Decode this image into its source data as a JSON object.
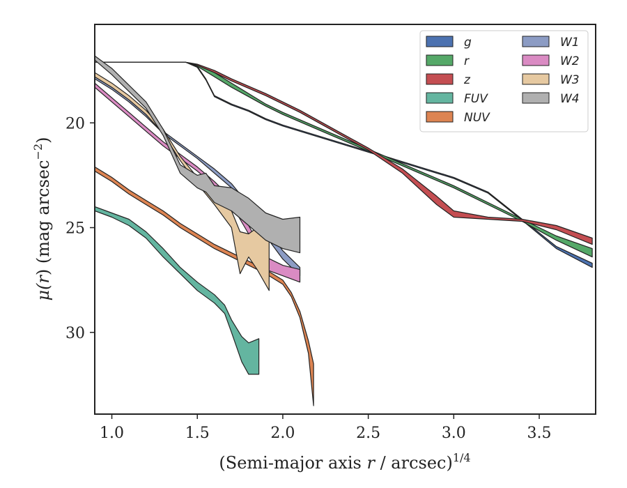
{
  "chart_data": {
    "type": "area",
    "title": "",
    "xlabel_parts": {
      "main": "(Semi-major axis ",
      "var": "r",
      "rest": " / arcsec)",
      "sup": "1/4"
    },
    "ylabel_parts": {
      "var": "μ(",
      "var2": "r",
      "rest": ") (mag arcsec",
      "sup": "−2",
      "close": ")"
    },
    "xlim": [
      0.9,
      3.83
    ],
    "ylim": [
      33.9,
      15.3
    ],
    "y_inverted": true,
    "xticks": [
      1.0,
      1.5,
      2.0,
      2.5,
      3.0,
      3.5
    ],
    "xtick_labels": [
      "1.0",
      "1.5",
      "2.0",
      "2.5",
      "3.0",
      "3.5"
    ],
    "yticks": [
      20,
      25,
      30
    ],
    "ytick_labels": [
      "20",
      "25",
      "30"
    ],
    "grid": false,
    "legend": {
      "position": "top-right",
      "columns": 2
    },
    "series": [
      {
        "name": "g",
        "color": "#4c72b0",
        "upper": [
          [
            0.9,
            17.1
          ],
          [
            1.43,
            17.1
          ],
          [
            1.5,
            17.3
          ],
          [
            1.55,
            17.9
          ],
          [
            1.6,
            18.7
          ],
          [
            1.7,
            19.1
          ],
          [
            1.8,
            19.4
          ],
          [
            1.9,
            19.8
          ],
          [
            2.0,
            20.1
          ],
          [
            2.2,
            20.6
          ],
          [
            2.4,
            21.1
          ],
          [
            2.6,
            21.6
          ],
          [
            2.8,
            22.1
          ],
          [
            3.0,
            22.6
          ],
          [
            3.2,
            23.3
          ],
          [
            3.4,
            24.6
          ],
          [
            3.6,
            25.9
          ],
          [
            3.81,
            26.7
          ]
        ],
        "lower": [
          [
            0.9,
            17.1
          ],
          [
            1.43,
            17.1
          ],
          [
            1.5,
            17.35
          ],
          [
            1.55,
            17.95
          ],
          [
            1.6,
            18.75
          ],
          [
            1.7,
            19.15
          ],
          [
            1.8,
            19.45
          ],
          [
            1.9,
            19.85
          ],
          [
            2.0,
            20.15
          ],
          [
            2.2,
            20.65
          ],
          [
            2.4,
            21.15
          ],
          [
            2.6,
            21.65
          ],
          [
            2.8,
            22.15
          ],
          [
            3.0,
            22.65
          ],
          [
            3.2,
            23.35
          ],
          [
            3.4,
            24.65
          ],
          [
            3.6,
            26.0
          ],
          [
            3.81,
            26.9
          ]
        ]
      },
      {
        "name": "r",
        "color": "#55a868",
        "upper": [
          [
            0.9,
            17.1
          ],
          [
            1.43,
            17.1
          ],
          [
            1.5,
            17.25
          ],
          [
            1.6,
            17.6
          ],
          [
            1.7,
            18.1
          ],
          [
            1.8,
            18.6
          ],
          [
            1.9,
            19.1
          ],
          [
            2.0,
            19.5
          ],
          [
            2.2,
            20.2
          ],
          [
            2.4,
            20.9
          ],
          [
            2.6,
            21.6
          ],
          [
            2.8,
            22.3
          ],
          [
            3.0,
            23.0
          ],
          [
            3.2,
            23.8
          ],
          [
            3.4,
            24.6
          ],
          [
            3.6,
            25.4
          ],
          [
            3.81,
            26.0
          ]
        ],
        "lower": [
          [
            0.9,
            17.1
          ],
          [
            1.43,
            17.1
          ],
          [
            1.5,
            17.3
          ],
          [
            1.6,
            17.8
          ],
          [
            1.7,
            18.3
          ],
          [
            1.8,
            18.75
          ],
          [
            1.9,
            19.2
          ],
          [
            2.0,
            19.6
          ],
          [
            2.2,
            20.3
          ],
          [
            2.4,
            21.0
          ],
          [
            2.6,
            21.7
          ],
          [
            2.8,
            22.4
          ],
          [
            3.0,
            23.1
          ],
          [
            3.2,
            23.9
          ],
          [
            3.4,
            24.7
          ],
          [
            3.6,
            25.6
          ],
          [
            3.81,
            26.4
          ]
        ]
      },
      {
        "name": "z",
        "color": "#c44e52",
        "upper": [
          [
            0.9,
            17.1
          ],
          [
            1.43,
            17.1
          ],
          [
            1.5,
            17.2
          ],
          [
            1.6,
            17.5
          ],
          [
            1.7,
            17.9
          ],
          [
            1.9,
            18.6
          ],
          [
            2.1,
            19.4
          ],
          [
            2.3,
            20.3
          ],
          [
            2.5,
            21.2
          ],
          [
            2.7,
            22.2
          ],
          [
            2.9,
            23.5
          ],
          [
            3.0,
            24.2
          ],
          [
            3.2,
            24.5
          ],
          [
            3.4,
            24.6
          ],
          [
            3.6,
            24.9
          ],
          [
            3.81,
            25.5
          ]
        ],
        "lower": [
          [
            0.9,
            17.1
          ],
          [
            1.43,
            17.1
          ],
          [
            1.5,
            17.25
          ],
          [
            1.6,
            17.6
          ],
          [
            1.7,
            18.0
          ],
          [
            1.9,
            18.7
          ],
          [
            2.1,
            19.5
          ],
          [
            2.3,
            20.4
          ],
          [
            2.5,
            21.3
          ],
          [
            2.7,
            22.4
          ],
          [
            2.9,
            23.9
          ],
          [
            3.0,
            24.5
          ],
          [
            3.2,
            24.6
          ],
          [
            3.4,
            24.7
          ],
          [
            3.6,
            25.1
          ],
          [
            3.81,
            25.8
          ]
        ]
      },
      {
        "name": "FUV",
        "color": "#64b5a0",
        "upper": [
          [
            0.9,
            24.0
          ],
          [
            1.0,
            24.3
          ],
          [
            1.1,
            24.6
          ],
          [
            1.2,
            25.2
          ],
          [
            1.3,
            26.0
          ],
          [
            1.4,
            26.9
          ],
          [
            1.5,
            27.6
          ],
          [
            1.6,
            28.2
          ],
          [
            1.66,
            28.7
          ],
          [
            1.7,
            29.4
          ],
          [
            1.76,
            30.2
          ],
          [
            1.8,
            30.5
          ],
          [
            1.86,
            30.3
          ]
        ],
        "lower": [
          [
            0.9,
            24.2
          ],
          [
            1.0,
            24.5
          ],
          [
            1.1,
            24.9
          ],
          [
            1.2,
            25.5
          ],
          [
            1.3,
            26.4
          ],
          [
            1.4,
            27.2
          ],
          [
            1.5,
            28.0
          ],
          [
            1.6,
            28.6
          ],
          [
            1.66,
            29.1
          ],
          [
            1.7,
            30.0
          ],
          [
            1.76,
            31.4
          ],
          [
            1.8,
            32.0
          ],
          [
            1.86,
            32.0
          ]
        ]
      },
      {
        "name": "NUV",
        "color": "#dd8452",
        "upper": [
          [
            0.9,
            22.1
          ],
          [
            1.0,
            22.6
          ],
          [
            1.1,
            23.2
          ],
          [
            1.2,
            23.7
          ],
          [
            1.3,
            24.2
          ],
          [
            1.4,
            24.8
          ],
          [
            1.5,
            25.3
          ],
          [
            1.6,
            25.8
          ],
          [
            1.7,
            26.2
          ],
          [
            1.8,
            26.6
          ],
          [
            1.9,
            27.0
          ],
          [
            2.0,
            27.5
          ],
          [
            2.05,
            28.1
          ],
          [
            2.1,
            29.0
          ],
          [
            2.15,
            30.4
          ],
          [
            2.18,
            31.5
          ]
        ],
        "lower": [
          [
            0.9,
            22.3
          ],
          [
            1.0,
            22.8
          ],
          [
            1.1,
            23.4
          ],
          [
            1.2,
            23.9
          ],
          [
            1.3,
            24.4
          ],
          [
            1.4,
            25.0
          ],
          [
            1.5,
            25.5
          ],
          [
            1.6,
            26.0
          ],
          [
            1.7,
            26.4
          ],
          [
            1.8,
            26.8
          ],
          [
            1.9,
            27.2
          ],
          [
            2.0,
            27.7
          ],
          [
            2.05,
            28.3
          ],
          [
            2.1,
            29.3
          ],
          [
            2.15,
            31.0
          ],
          [
            2.18,
            33.5
          ]
        ]
      },
      {
        "name": "W1",
        "color": "#8c9cc4",
        "upper": [
          [
            0.9,
            17.8
          ],
          [
            1.0,
            18.3
          ],
          [
            1.1,
            18.9
          ],
          [
            1.2,
            19.6
          ],
          [
            1.3,
            20.4
          ],
          [
            1.4,
            21.0
          ],
          [
            1.5,
            21.6
          ],
          [
            1.6,
            22.2
          ],
          [
            1.7,
            22.9
          ],
          [
            1.8,
            23.9
          ],
          [
            1.9,
            25.0
          ],
          [
            2.0,
            26.1
          ],
          [
            2.1,
            26.9
          ]
        ],
        "lower": [
          [
            0.9,
            17.9
          ],
          [
            1.0,
            18.4
          ],
          [
            1.1,
            19.0
          ],
          [
            1.2,
            19.7
          ],
          [
            1.3,
            20.5
          ],
          [
            1.4,
            21.1
          ],
          [
            1.5,
            21.7
          ],
          [
            1.6,
            22.4
          ],
          [
            1.7,
            23.1
          ],
          [
            1.8,
            24.2
          ],
          [
            1.9,
            25.4
          ],
          [
            2.0,
            26.5
          ],
          [
            2.1,
            27.3
          ]
        ]
      },
      {
        "name": "W2",
        "color": "#da8bc3",
        "upper": [
          [
            0.9,
            18.1
          ],
          [
            1.0,
            18.8
          ],
          [
            1.1,
            19.5
          ],
          [
            1.2,
            20.2
          ],
          [
            1.3,
            20.9
          ],
          [
            1.4,
            21.5
          ],
          [
            1.5,
            22.1
          ],
          [
            1.6,
            22.8
          ],
          [
            1.7,
            23.6
          ],
          [
            1.8,
            24.9
          ],
          [
            1.9,
            26.4
          ],
          [
            2.0,
            26.8
          ],
          [
            2.1,
            27.0
          ]
        ],
        "lower": [
          [
            0.9,
            18.3
          ],
          [
            1.0,
            19.0
          ],
          [
            1.1,
            19.7
          ],
          [
            1.2,
            20.4
          ],
          [
            1.3,
            21.1
          ],
          [
            1.4,
            21.7
          ],
          [
            1.5,
            22.3
          ],
          [
            1.6,
            23.0
          ],
          [
            1.7,
            23.9
          ],
          [
            1.8,
            25.3
          ],
          [
            1.9,
            27.0
          ],
          [
            2.0,
            27.3
          ],
          [
            2.1,
            27.6
          ]
        ]
      },
      {
        "name": "W3",
        "color": "#e6c9a1",
        "upper": [
          [
            0.9,
            17.6
          ],
          [
            1.0,
            18.1
          ],
          [
            1.1,
            18.7
          ],
          [
            1.2,
            19.4
          ],
          [
            1.3,
            20.3
          ],
          [
            1.4,
            21.6
          ],
          [
            1.5,
            22.6
          ],
          [
            1.6,
            23.4
          ],
          [
            1.7,
            24.2
          ],
          [
            1.75,
            25.2
          ],
          [
            1.8,
            25.3
          ],
          [
            1.85,
            25.0
          ],
          [
            1.92,
            25.1
          ]
        ],
        "lower": [
          [
            0.9,
            17.8
          ],
          [
            1.0,
            18.3
          ],
          [
            1.1,
            18.9
          ],
          [
            1.2,
            19.6
          ],
          [
            1.3,
            20.5
          ],
          [
            1.4,
            21.8
          ],
          [
            1.5,
            22.9
          ],
          [
            1.6,
            23.9
          ],
          [
            1.7,
            25.0
          ],
          [
            1.75,
            27.2
          ],
          [
            1.8,
            26.4
          ],
          [
            1.85,
            27.0
          ],
          [
            1.92,
            28.0
          ]
        ]
      },
      {
        "name": "W4",
        "color": "#b0b0b0",
        "upper": [
          [
            0.9,
            16.8
          ],
          [
            1.0,
            17.4
          ],
          [
            1.1,
            18.2
          ],
          [
            1.2,
            19.0
          ],
          [
            1.3,
            20.3
          ],
          [
            1.4,
            22.0
          ],
          [
            1.5,
            22.5
          ],
          [
            1.55,
            22.4
          ],
          [
            1.6,
            23.0
          ],
          [
            1.7,
            23.1
          ],
          [
            1.8,
            23.6
          ],
          [
            1.9,
            24.3
          ],
          [
            2.0,
            24.6
          ],
          [
            2.1,
            24.5
          ]
        ],
        "lower": [
          [
            0.9,
            17.0
          ],
          [
            1.0,
            17.7
          ],
          [
            1.1,
            18.5
          ],
          [
            1.2,
            19.3
          ],
          [
            1.3,
            20.6
          ],
          [
            1.4,
            22.4
          ],
          [
            1.5,
            23.1
          ],
          [
            1.55,
            23.3
          ],
          [
            1.6,
            23.8
          ],
          [
            1.7,
            24.2
          ],
          [
            1.8,
            24.9
          ],
          [
            1.9,
            25.6
          ],
          [
            2.0,
            26.0
          ],
          [
            2.1,
            26.2
          ]
        ]
      }
    ]
  }
}
